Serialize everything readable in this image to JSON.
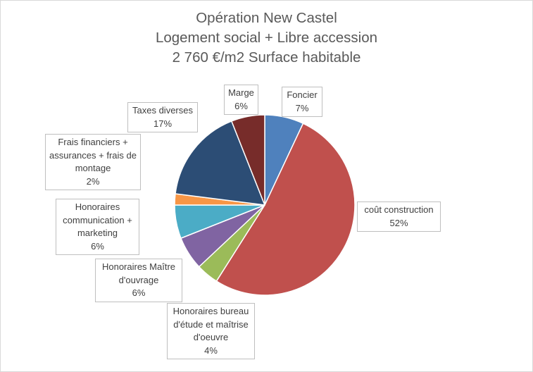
{
  "chart_data": {
    "type": "pie",
    "title": [
      "Opération New Castel",
      "Logement social + Libre accession",
      "2 760 €/m2 Surface habitable"
    ],
    "start_angle_deg": 0,
    "direction": "clockwise",
    "slices": [
      {
        "name": "Foncier",
        "value": 7,
        "pct": "7%",
        "color": "#4f81bd"
      },
      {
        "name": "coût construction",
        "value": 52,
        "pct": "52%",
        "color": "#c0504d"
      },
      {
        "name": "Honoraires bureau d'étude et maîtrise d'oeuvre",
        "value": 4,
        "pct": "4%",
        "color": "#9bbb59"
      },
      {
        "name": "Honoraires Maître d'ouvrage",
        "value": 6,
        "pct": "6%",
        "color": "#8064a2"
      },
      {
        "name": "Honoraires communication + marketing",
        "value": 6,
        "pct": "6%",
        "color": "#4bacc6"
      },
      {
        "name": "Frais financiers + assurances + frais de montage",
        "value": 2,
        "pct": "2%",
        "color": "#f79646"
      },
      {
        "name": "Taxes diverses",
        "value": 17,
        "pct": "17%",
        "color": "#2c4d75"
      },
      {
        "name": "Marge",
        "value": 6,
        "pct": "6%",
        "color": "#772c2a"
      }
    ]
  }
}
